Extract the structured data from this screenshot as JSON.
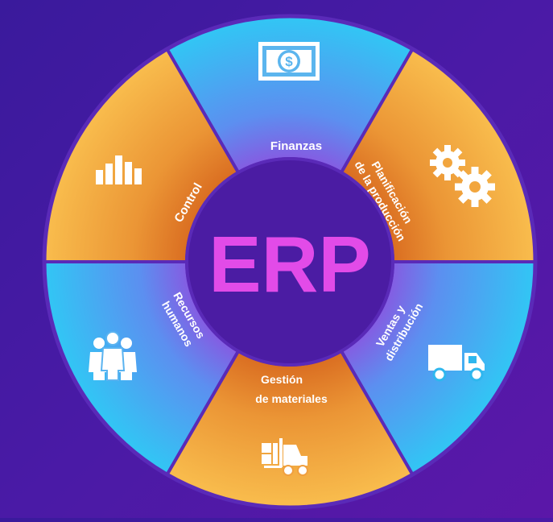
{
  "center_label": "ERP",
  "colors": {
    "background": "#4a1aa6",
    "ring_border": "#5a2ab8",
    "hub_fill": "#4b1ca3",
    "hub_text": "#e24be8",
    "blue_light": "#3cc0f2",
    "blue_mid": "#7b64e6",
    "orange_light": "#f7b24a",
    "orange_mid": "#e07c28"
  },
  "segments": [
    {
      "id": "finanzas",
      "lines": [
        "Finanzas"
      ],
      "icon": "money-icon",
      "tone": "blue"
    },
    {
      "id": "planificacion",
      "lines": [
        "Planificación",
        "de la producción"
      ],
      "icon": "gears-icon",
      "tone": "orange"
    },
    {
      "id": "ventas",
      "lines": [
        "Ventas y",
        "distribución"
      ],
      "icon": "truck-icon",
      "tone": "blue"
    },
    {
      "id": "gestion",
      "lines": [
        "Gestión",
        "de materiales"
      ],
      "icon": "forklift-icon",
      "tone": "orange"
    },
    {
      "id": "recursos",
      "lines": [
        "Recursos",
        "humanos"
      ],
      "icon": "people-icon",
      "tone": "blue"
    },
    {
      "id": "control",
      "lines": [
        "Control"
      ],
      "icon": "bar-chart-icon",
      "tone": "orange"
    }
  ]
}
